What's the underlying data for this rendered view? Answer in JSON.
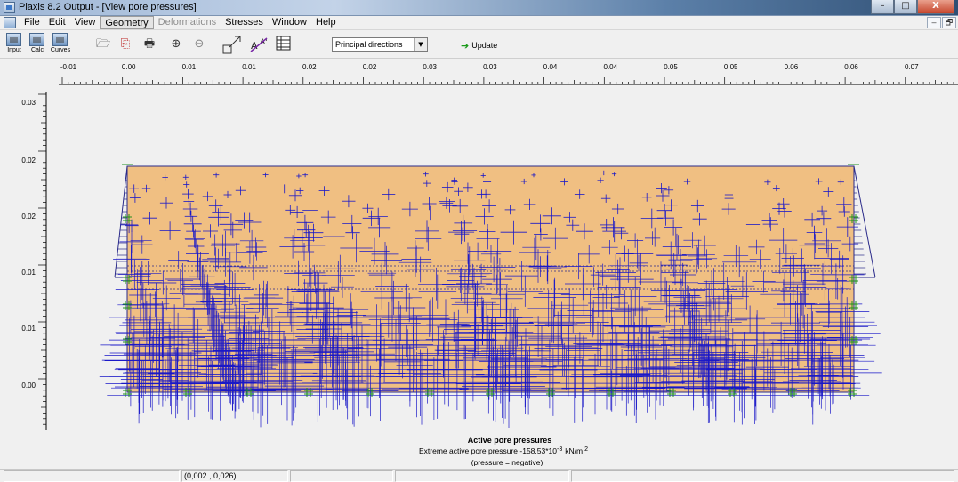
{
  "window": {
    "title": "Plaxis 8.2 Output - [View pore pressures]",
    "buttons": {
      "minimize": "–",
      "maximize": "□",
      "close": "X"
    },
    "mdi_buttons": {
      "minimize": "–",
      "restore": "🗗"
    }
  },
  "menu": [
    "File",
    "Edit",
    "View",
    "Geometry",
    "Deformations",
    "Stresses",
    "Window",
    "Help"
  ],
  "toolbar": {
    "big_buttons": [
      "Input",
      "Calc",
      "Curves"
    ],
    "icons": [
      "open-icon",
      "copy-icon",
      "print-icon",
      "zoom-in-icon",
      "zoom-out-icon",
      "scale-icon",
      "annotate-icon",
      "table-icon"
    ],
    "select_value": "Principal directions",
    "update_label": "Update"
  },
  "ruler": {
    "top_labels": [
      "-0.01",
      "0.00",
      "0.01",
      "0.01",
      "0.02",
      "0.02",
      "0.03",
      "0.03",
      "0.04",
      "0.04",
      "0.05",
      "0.05",
      "0.06",
      "0.06",
      "0.07"
    ],
    "left_labels": [
      "0.03",
      "0.02",
      "0.02",
      "0.01",
      "0.01",
      "0.00"
    ]
  },
  "legend": {
    "title": "Active pore pressures",
    "extreme_text": "Extreme active pore pressure -158,53*10",
    "extreme_exp": "-3",
    "extreme_unit": "kN/m",
    "extreme_unit_exp": "2",
    "note": "(pressure = negative)"
  },
  "colors": {
    "soil_fill": "#f0bf82",
    "vectors": "#1a18c8",
    "boundary": "#2a2a8a",
    "fixities": "#1f8f1f"
  },
  "status": {
    "coordinates": "(0,002 , 0,026)"
  }
}
